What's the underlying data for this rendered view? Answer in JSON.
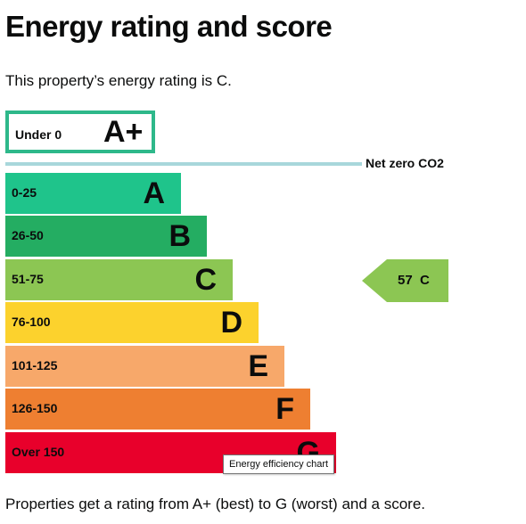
{
  "title": "Energy rating and score",
  "intro": "This property’s energy rating is C.",
  "footer": "Properties get a rating from A+ (best) to G (worst) and a score.",
  "chart": {
    "top_band": {
      "range": "Under 0",
      "letter": "A+",
      "border_color": "#2eb88a"
    },
    "net_zero_label": "Net zero CO2",
    "bands": [
      {
        "range": "0-25",
        "letter": "A",
        "color": "#1fc48b"
      },
      {
        "range": "26-50",
        "letter": "B",
        "color": "#24ad62"
      },
      {
        "range": "51-75",
        "letter": "C",
        "color": "#8cc653"
      },
      {
        "range": "76-100",
        "letter": "D",
        "color": "#fcd22d"
      },
      {
        "range": "101-125",
        "letter": "E",
        "color": "#f7a86a"
      },
      {
        "range": "126-150",
        "letter": "F",
        "color": "#ee7f31"
      },
      {
        "range": "Over 150",
        "letter": "G",
        "color": "#e8002b"
      }
    ],
    "current": {
      "score": "57",
      "letter": "C",
      "color": "#8cc653"
    },
    "tooltip": "Energy efficiency chart"
  }
}
